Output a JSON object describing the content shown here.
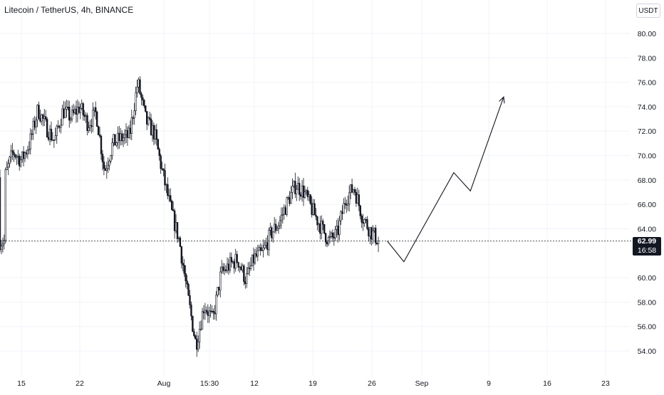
{
  "header": {
    "title": "Litecoin / TetherUS, 4h, BINANCE",
    "currency": "USDT"
  },
  "last_price": {
    "value": "62.99",
    "countdown": "16:58",
    "price": 62.99
  },
  "colors": {
    "background": "#ffffff",
    "candle": "#131722",
    "grid": "#f0f3fa",
    "axis_text": "#131722",
    "price_line": "#131722"
  },
  "chart_data": {
    "type": "candlestick",
    "symbol": "Litecoin / TetherUS",
    "interval": "4h",
    "exchange": "BINANCE",
    "y_axis": {
      "position": "right",
      "ticks": [
        "80.00",
        "78.00",
        "76.00",
        "74.00",
        "72.00",
        "70.00",
        "68.00",
        "66.00",
        "64.00",
        "60.00",
        "58.00",
        "56.00",
        "54.00"
      ],
      "range": [
        53,
        81
      ]
    },
    "x_axis": {
      "ticks": [
        "15",
        "22",
        "Aug",
        "15:30",
        "12",
        "19",
        "26",
        "Sep",
        "9",
        "16",
        "23"
      ]
    },
    "price_path": [
      [
        "Jul 13",
        68.2
      ],
      [
        "Jul 14",
        70.3
      ],
      [
        "Jul 15",
        69.6
      ],
      [
        "Jul 16",
        71.0
      ],
      [
        "Jul 17",
        73.8
      ],
      [
        "Jul 18",
        72.3
      ],
      [
        "Jul 19",
        71.2
      ],
      [
        "Jul 20",
        73.7
      ],
      [
        "Jul 21",
        73.1
      ],
      [
        "Jul 22",
        74.0
      ],
      [
        "Jul 23",
        72.6
      ],
      [
        "Jul 24",
        73.5
      ],
      [
        "Jul 25",
        68.7
      ],
      [
        "Jul 26",
        71.0
      ],
      [
        "Jul 27",
        71.4
      ],
      [
        "Jul 28",
        71.6
      ],
      [
        "Jul 29",
        76.0
      ],
      [
        "Jul 30",
        72.8
      ],
      [
        "Jul 31",
        71.8
      ],
      [
        "Aug 1",
        68.5
      ],
      [
        "Aug 2",
        65.5
      ],
      [
        "Aug 3",
        63.0
      ],
      [
        "Aug 4",
        58.5
      ],
      [
        "Aug 5",
        54.5
      ],
      [
        "Aug 6",
        57.8
      ],
      [
        "Aug 7",
        56.5
      ],
      [
        "Aug 8",
        60.3
      ],
      [
        "Aug 9",
        61.0
      ],
      [
        "Aug 10",
        61.5
      ],
      [
        "Aug 11",
        59.8
      ],
      [
        "Aug 12",
        61.6
      ],
      [
        "Aug 13",
        62.0
      ],
      [
        "Aug 14",
        63.6
      ],
      [
        "Aug 15",
        64.5
      ],
      [
        "Aug 16",
        66.2
      ],
      [
        "Aug 17",
        67.6
      ],
      [
        "Aug 18",
        67.0
      ],
      [
        "Aug 19",
        65.5
      ],
      [
        "Aug 20",
        64.2
      ],
      [
        "Aug 21",
        63.0
      ],
      [
        "Aug 22",
        63.6
      ],
      [
        "Aug 23",
        66.5
      ],
      [
        "Aug 24",
        67.4
      ],
      [
        "Aug 25",
        65.0
      ],
      [
        "Aug 26",
        63.8
      ],
      [
        "Aug 27",
        62.99
      ]
    ],
    "last_price": 62.99,
    "projection": {
      "description": "hand-drawn forecast arrow",
      "points": [
        [
          "Aug 28",
          63.0
        ],
        [
          "Aug 30",
          61.3
        ],
        [
          "Sep 5",
          68.6
        ],
        [
          "Sep 7",
          67.1
        ],
        [
          "Sep 11",
          74.8
        ]
      ]
    }
  }
}
